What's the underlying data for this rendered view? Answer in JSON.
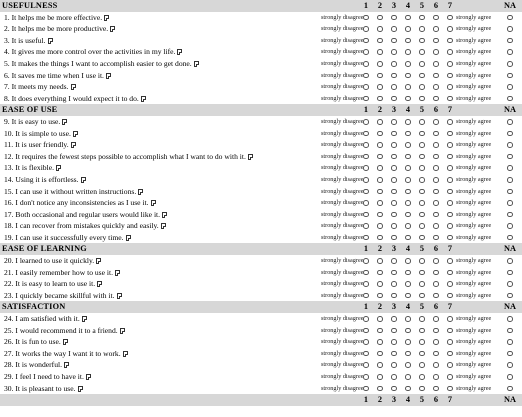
{
  "scale": {
    "numbers": [
      "1",
      "2",
      "3",
      "4",
      "5",
      "6",
      "7"
    ],
    "na": "NA",
    "left_anchor": "strongly disagree",
    "right_anchor": "strongly agree"
  },
  "sections": [
    {
      "title": "USEFULNESS",
      "items": [
        "1. It helps me be more effective.",
        "2. It helps me be more productive.",
        "3. It is useful.",
        "4. It gives me more control over the activities in my life.",
        "5. It makes the things I want to accomplish easier to get done.",
        "6. It saves me time when I use it.",
        "7. It meets my needs.",
        "8. It does everything I would expect it to do."
      ]
    },
    {
      "title": "EASE OF USE",
      "items": [
        "9. It is easy to use.",
        "10. It is simple to use.",
        "11. It is user friendly.",
        "12. It requires the fewest steps possible to accomplish what I want to do with it.",
        "13. It is flexible.",
        "14. Using it is effortless.",
        "15. I can use it without written instructions.",
        "16. I don't notice any inconsistencies as I use it.",
        "17. Both occasional and regular users would like it.",
        "18. I can recover from mistakes quickly and easily.",
        "19. I can use it successfully every time."
      ]
    },
    {
      "title": "EASE OF LEARNING",
      "items": [
        "20. I learned to use it quickly.",
        "21. I easily remember how to use it.",
        "22. It is easy to learn to use it.",
        "23. I quickly became skillful with it."
      ]
    },
    {
      "title": "SATISFACTION",
      "items": [
        "24. I am satisfied with it.",
        "25. I would recommend it to a friend.",
        "26. It is fun to use.",
        "27. It works the way I want it to work.",
        "28. It is wonderful.",
        "29. I feel I need to have it.",
        "30. It is pleasant to use."
      ]
    }
  ]
}
